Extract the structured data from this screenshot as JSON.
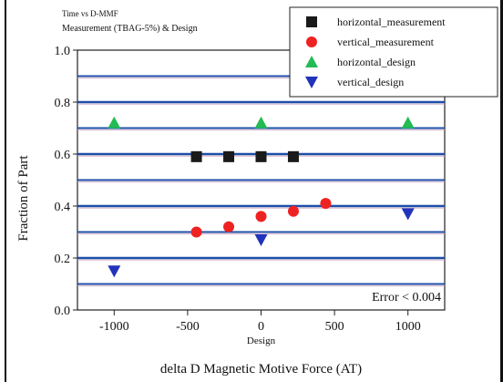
{
  "header": {
    "line1": "Time vs D-MMF",
    "line2": "Measurement (TBAG-5%) & Design"
  },
  "chart_data": {
    "type": "scatter",
    "title": "",
    "xlabel": "delta D Magnetic Motive Force (AT)",
    "ylabel": "Fraction of Part",
    "x_center_label": "Design",
    "xlim": [
      -1250,
      1250
    ],
    "ylim": [
      0.0,
      1.0
    ],
    "xticks": [
      -1000,
      -500,
      0,
      500,
      1000
    ],
    "xtick_labels": [
      "-1000",
      "-500",
      "0",
      "500",
      "1000"
    ],
    "yticks": [
      0.0,
      0.2,
      0.4,
      0.6,
      0.8,
      1.0
    ],
    "ytick_labels": [
      "0.0",
      "0.2",
      "0.4",
      "0.6",
      "0.8",
      "1.0"
    ],
    "grid": true,
    "grid_lines_y": [
      0.1,
      0.2,
      0.3,
      0.4,
      0.5,
      0.6,
      0.7,
      0.8,
      0.9
    ],
    "legend_position": "top-right",
    "annotation": "Error < 0.004",
    "series": [
      {
        "name": "horizontal_measurement",
        "marker": "square",
        "color": "#1a1a1a",
        "points": [
          [
            -440,
            0.59
          ],
          [
            -220,
            0.59
          ],
          [
            0,
            0.59
          ],
          [
            220,
            0.59
          ]
        ]
      },
      {
        "name": "vertical_measurement",
        "marker": "circle",
        "color": "#ee2222",
        "points": [
          [
            -440,
            0.3
          ],
          [
            -220,
            0.32
          ],
          [
            0,
            0.36
          ],
          [
            220,
            0.38
          ],
          [
            440,
            0.41
          ]
        ]
      },
      {
        "name": "horizontal_design",
        "marker": "triangle-up",
        "color": "#22bb55",
        "points": [
          [
            -1000,
            0.72
          ],
          [
            0,
            0.72
          ],
          [
            1000,
            0.72
          ]
        ]
      },
      {
        "name": "vertical_design",
        "marker": "triangle-down",
        "color": "#2233bb",
        "points": [
          [
            -1000,
            0.15
          ],
          [
            0,
            0.27
          ],
          [
            1000,
            0.37
          ]
        ]
      }
    ]
  }
}
